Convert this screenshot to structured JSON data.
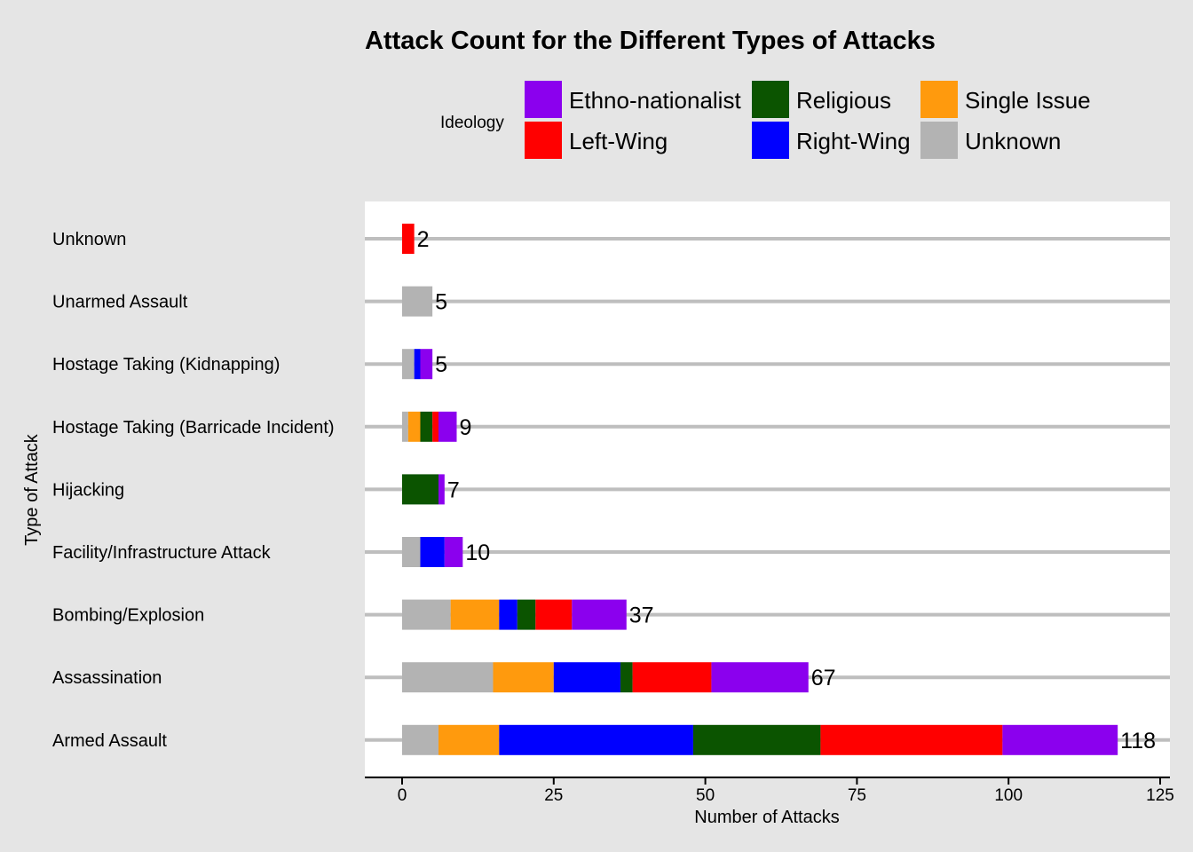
{
  "chart_data": {
    "type": "bar",
    "orientation": "horizontal",
    "stacked": true,
    "title": "Attack Count for the Different Types of Attacks",
    "xlabel": "Number of Attacks",
    "ylabel": "Type of Attack",
    "xlim": [
      -6,
      126
    ],
    "xticks": [
      0,
      25,
      50,
      75,
      100,
      125
    ],
    "grid": "horizontal lines at each category",
    "legend": {
      "title": "Ideology",
      "placement": "top",
      "items": [
        {
          "label": "Ethno-nationalist",
          "color": "#8b00ee"
        },
        {
          "label": "Religious",
          "color": "#0b5400"
        },
        {
          "label": "Single Issue",
          "color": "#ff9a0d"
        },
        {
          "label": "Left-Wing",
          "color": "#ff0000"
        },
        {
          "label": "Right-Wing",
          "color": "#0000ff"
        },
        {
          "label": "Unknown",
          "color": "#b3b3b3"
        }
      ]
    },
    "stack_order": [
      "Unknown",
      "Single Issue",
      "Right-Wing",
      "Religious",
      "Left-Wing",
      "Ethno-nationalist"
    ],
    "categories": [
      "Unknown",
      "Unarmed Assault",
      "Hostage Taking (Kidnapping)",
      "Hostage Taking (Barricade Incident)",
      "Hijacking",
      "Facility/Infrastructure Attack",
      "Bombing/Explosion",
      "Assassination",
      "Armed Assault"
    ],
    "totals": [
      "2",
      "5",
      "5",
      "9",
      "7",
      "10",
      "37",
      "67",
      "118"
    ],
    "series": [
      {
        "name": "Unknown",
        "values": [
          0,
          5,
          2,
          1,
          0,
          3,
          8,
          15,
          6
        ]
      },
      {
        "name": "Single Issue",
        "values": [
          0,
          0,
          0,
          2,
          0,
          0,
          8,
          10,
          10
        ]
      },
      {
        "name": "Right-Wing",
        "values": [
          0,
          0,
          1,
          0,
          0,
          4,
          3,
          11,
          32
        ]
      },
      {
        "name": "Religious",
        "values": [
          0,
          0,
          0,
          2,
          6,
          0,
          3,
          2,
          21
        ]
      },
      {
        "name": "Left-Wing",
        "values": [
          2,
          0,
          0,
          1,
          0,
          0,
          6,
          13,
          30
        ]
      },
      {
        "name": "Ethno-nationalist",
        "values": [
          0,
          0,
          2,
          3,
          1,
          3,
          9,
          16,
          19
        ]
      }
    ],
    "colors": {
      "Unknown": "#b3b3b3",
      "Single Issue": "#ff9a0d",
      "Right-Wing": "#0000ff",
      "Religious": "#0b5400",
      "Left-Wing": "#ff0000",
      "Ethno-nationalist": "#8b00ee",
      "gridline": "#bebebe",
      "panel": "#ffffff",
      "background": "#e5e5e5"
    }
  }
}
